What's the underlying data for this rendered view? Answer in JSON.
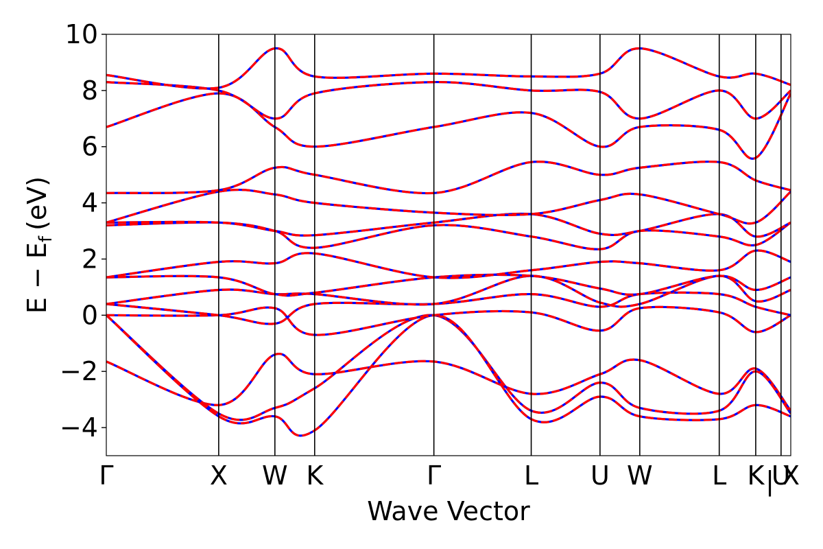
{
  "chart_data": {
    "type": "line",
    "title": "",
    "xlabel": "Wave Vector",
    "ylabel": "E − E",
    "ylabel_subscript": "f",
    "ylabel_unit": "(eV)",
    "ylim": [
      -5,
      10
    ],
    "yticks": [
      -4,
      -2,
      0,
      2,
      4,
      6,
      8,
      10
    ],
    "ytick_labels": [
      "−4",
      "−2",
      "0",
      "2",
      "4",
      "6",
      "8",
      "10"
    ],
    "xlim": [
      0,
      1
    ],
    "kpoints": [
      {
        "label": "Γ",
        "x": 0.0
      },
      {
        "label": "X",
        "x": 0.1642
      },
      {
        "label": "W",
        "x": 0.2463
      },
      {
        "label": "K",
        "x": 0.3044
      },
      {
        "label": "Γ",
        "x": 0.4786
      },
      {
        "label": "L",
        "x": 0.6208
      },
      {
        "label": "U",
        "x": 0.7213
      },
      {
        "label": "W",
        "x": 0.7794
      },
      {
        "label": "L",
        "x": 0.8955
      },
      {
        "label": "K",
        "x": 0.9488
      },
      {
        "label": "|",
        "x": 0.9695
      },
      {
        "label": "U",
        "x": 0.9858
      },
      {
        "label": "X",
        "x": 1.0
      }
    ],
    "grid": false,
    "legend": "none",
    "series_styles": [
      {
        "color": "#0000ff",
        "style": "solid"
      },
      {
        "color": "#ff0000",
        "style": "dashed"
      }
    ],
    "bands": [
      {
        "x": [
          0,
          0.1642,
          0.2463,
          0.3044,
          0.4786,
          0.6208,
          0.7213,
          0.7794,
          0.8955,
          0.9488,
          1.0
        ],
        "y": [
          -1.65,
          -3.2,
          -1.4,
          -2.1,
          -1.65,
          -2.8,
          -2.1,
          -1.6,
          -2.8,
          -1.9,
          -3.4
        ]
      },
      {
        "x": [
          0,
          0.1642,
          0.2463,
          0.3044,
          0.4786,
          0.6208,
          0.7213,
          0.7794,
          0.8955,
          0.9488,
          1.0
        ],
        "y": [
          -0.0,
          -3.5,
          -3.3,
          -2.6,
          -0.0,
          -3.4,
          -2.4,
          -3.3,
          -3.4,
          -2.0,
          -3.5
        ]
      },
      {
        "x": [
          0,
          0.1642,
          0.2463,
          0.3044,
          0.4786,
          0.6208,
          0.7213,
          0.7794,
          0.8955,
          0.9488,
          1.0
        ],
        "y": [
          -0.0,
          -3.6,
          -3.6,
          -4.1,
          -0.0,
          -3.7,
          -2.9,
          -3.6,
          -3.7,
          -3.2,
          -3.6
        ]
      },
      {
        "x": [
          0,
          0.1642,
          0.2463,
          0.3044,
          0.4786,
          0.6208,
          0.7213,
          0.7794,
          0.8955,
          0.9488,
          1.0
        ],
        "y": [
          0.0,
          -0.0,
          0.25,
          -0.7,
          0.0,
          0.1,
          -0.55,
          0.25,
          0.1,
          -0.6,
          -0.0
        ]
      },
      {
        "x": [
          0,
          0.1642,
          0.2463,
          0.3044,
          0.4786,
          0.6208,
          0.7213,
          0.7794,
          0.8955,
          0.9488,
          1.0
        ],
        "y": [
          0.4,
          0.0,
          -0.3,
          0.4,
          0.4,
          0.75,
          0.3,
          0.75,
          0.75,
          0.3,
          0.0
        ]
      },
      {
        "x": [
          0,
          0.1642,
          0.2463,
          0.3044,
          0.4786,
          0.6208,
          0.7213,
          0.7794,
          0.8955,
          0.9488,
          1.0
        ],
        "y": [
          0.4,
          0.9,
          0.75,
          0.75,
          0.4,
          1.4,
          0.45,
          0.4,
          1.4,
          0.5,
          0.9
        ]
      },
      {
        "x": [
          0,
          0.1642,
          0.2463,
          0.3044,
          0.4786,
          0.6208,
          0.7213,
          0.7794,
          0.8955,
          0.9488,
          1.0
        ],
        "y": [
          1.35,
          1.35,
          0.75,
          0.8,
          1.35,
          1.4,
          0.95,
          0.75,
          1.4,
          0.9,
          1.35
        ]
      },
      {
        "x": [
          0,
          0.1642,
          0.2463,
          0.3044,
          0.4786,
          0.6208,
          0.7213,
          0.7794,
          0.8955,
          0.9488,
          1.0
        ],
        "y": [
          1.35,
          1.9,
          1.85,
          2.2,
          1.35,
          1.6,
          1.9,
          1.85,
          1.6,
          2.3,
          1.9
        ]
      },
      {
        "x": [
          0,
          0.1642,
          0.2463,
          0.3044,
          0.4786,
          0.6208,
          0.7213,
          0.7794,
          0.8955,
          0.9488,
          1.0
        ],
        "y": [
          3.2,
          3.3,
          3.0,
          2.4,
          3.2,
          2.8,
          2.35,
          3.0,
          2.8,
          2.5,
          3.3
        ]
      },
      {
        "x": [
          0,
          0.1642,
          0.2463,
          0.3044,
          0.4786,
          0.6208,
          0.7213,
          0.7794,
          0.8955,
          0.9488,
          1.0
        ],
        "y": [
          3.3,
          3.3,
          3.0,
          2.85,
          3.3,
          3.6,
          2.9,
          3.0,
          3.6,
          2.8,
          3.3
        ]
      },
      {
        "x": [
          0,
          0.1642,
          0.2463,
          0.3044,
          0.4786,
          0.6208,
          0.7213,
          0.7794,
          0.8955,
          0.9488,
          1.0
        ],
        "y": [
          3.3,
          4.4,
          4.3,
          4.0,
          3.65,
          3.6,
          4.1,
          4.3,
          3.6,
          3.3,
          4.4
        ]
      },
      {
        "x": [
          0,
          0.1642,
          0.2463,
          0.3044,
          0.4786,
          0.6208,
          0.7213,
          0.7794,
          0.8955,
          0.9488,
          1.0
        ],
        "y": [
          4.35,
          4.45,
          5.25,
          5.0,
          4.35,
          5.45,
          5.0,
          5.25,
          5.45,
          4.8,
          4.45
        ]
      },
      {
        "x": [
          0,
          0.1642,
          0.2463,
          0.3044,
          0.4786,
          0.6208,
          0.7213,
          0.7794,
          0.8955,
          0.9488,
          1.0
        ],
        "y": [
          6.7,
          7.9,
          6.7,
          6.0,
          6.7,
          7.2,
          6.0,
          6.7,
          6.6,
          5.6,
          7.9
        ]
      },
      {
        "x": [
          0,
          0.1642,
          0.2463,
          0.3044,
          0.4786,
          0.6208,
          0.7213,
          0.7794,
          0.8955,
          0.9488,
          1.0
        ],
        "y": [
          8.3,
          8.0,
          7.0,
          7.9,
          8.3,
          8.0,
          7.95,
          7.0,
          8.0,
          7.0,
          8.0
        ]
      },
      {
        "x": [
          0,
          0.1642,
          0.2463,
          0.3044,
          0.4786,
          0.6208,
          0.7213,
          0.7794,
          0.8955,
          0.9488,
          1.0
        ],
        "y": [
          8.55,
          8.1,
          9.5,
          8.5,
          8.6,
          8.5,
          8.6,
          9.5,
          8.5,
          8.6,
          8.2
        ]
      }
    ]
  }
}
